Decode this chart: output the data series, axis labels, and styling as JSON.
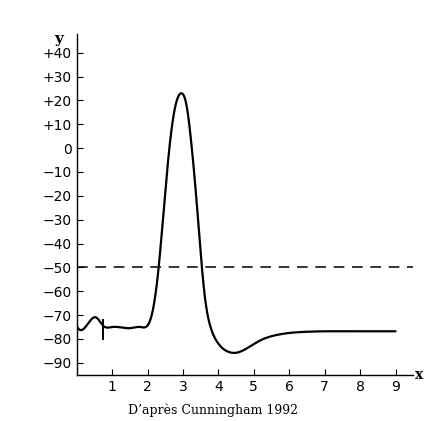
{
  "title_bottom": "D’après Cunningham 1992",
  "ylabel": "y",
  "xlabel": "x",
  "xlim": [
    0,
    9.5
  ],
  "ylim": [
    -95,
    48
  ],
  "yticks": [
    -90,
    -80,
    -70,
    -60,
    -50,
    -40,
    -30,
    -20,
    -10,
    0,
    10,
    20,
    30,
    40
  ],
  "ytick_labels": [
    "−90",
    "−80",
    "−70",
    "−60",
    "−50",
    "−40",
    "−30",
    "−20",
    "−10",
    "0",
    "+10",
    "+20",
    "+30",
    "+40"
  ],
  "xticks": [
    1,
    2,
    3,
    4,
    5,
    6,
    7,
    8,
    9
  ],
  "dashed_y": -50,
  "dashed_color": "#000000",
  "line_color": "#000000",
  "background_color": "#ffffff",
  "tick_mark_x": 0.75,
  "tick_mark_y_center": -76,
  "tick_mark_half_height": 4
}
